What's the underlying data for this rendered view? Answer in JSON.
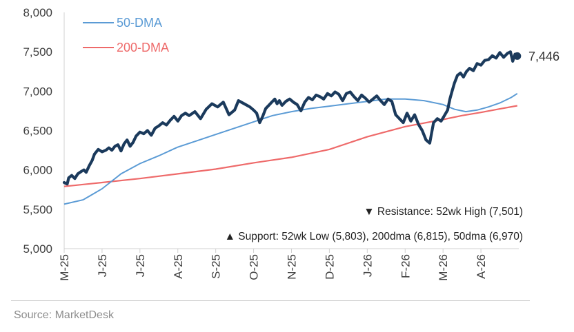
{
  "chart_data": {
    "type": "line",
    "y_ticks": [
      "8,000",
      "7,500",
      "7,000",
      "6,500",
      "6,000",
      "5,500",
      "5,000"
    ],
    "ylim": [
      5000,
      8000
    ],
    "x_ticks": [
      "M-25",
      "J-25",
      "J-25",
      "A-25",
      "S-25",
      "O-25",
      "N-25",
      "D-25",
      "J-26",
      "F-26",
      "M-26",
      "A-26"
    ],
    "xlim": [
      0,
      12
    ],
    "legend": {
      "ma50_label": "50-DMA",
      "ma200_label": "200-DMA"
    },
    "last_value_label": "7,446",
    "annotations": {
      "resistance": "▼ Resistance:  52wk High (7,501)",
      "support": "▲ Support:  52wk Low (5,803), 200dma (6,815), 50dma (6,970)"
    },
    "colors": {
      "price": "#1b3a5c",
      "ma50": "#5b9bd5",
      "ma200": "#ee6a6a",
      "axis": "#d0d0d0"
    },
    "series": [
      {
        "key": "price",
        "x": [
          0.0,
          0.08,
          0.12,
          0.2,
          0.28,
          0.36,
          0.45,
          0.52,
          0.58,
          0.66,
          0.74,
          0.8,
          0.9,
          1.0,
          1.1,
          1.18,
          1.26,
          1.34,
          1.42,
          1.5,
          1.58,
          1.66,
          1.74,
          1.82,
          1.9,
          2.0,
          2.1,
          2.2,
          2.3,
          2.4,
          2.5,
          2.6,
          2.7,
          2.8,
          2.9,
          3.0,
          3.1,
          3.2,
          3.3,
          3.45,
          3.6,
          3.75,
          3.9,
          4.05,
          4.2,
          4.35,
          4.5,
          4.55,
          4.6,
          4.75,
          4.9,
          5.0,
          5.08,
          5.16,
          5.24,
          5.32,
          5.4,
          5.48,
          5.56,
          5.62,
          5.68,
          5.75,
          5.85,
          5.95,
          6.05,
          6.15,
          6.25,
          6.35,
          6.45,
          6.55,
          6.65,
          6.75,
          6.85,
          6.95,
          7.05,
          7.15,
          7.25,
          7.35,
          7.45,
          7.55,
          7.65,
          7.75,
          7.85,
          7.95,
          8.05,
          8.15,
          8.25,
          8.35,
          8.45,
          8.55,
          8.65,
          8.75,
          8.85,
          8.95,
          9.05,
          9.15,
          9.25,
          9.35,
          9.45,
          9.55,
          9.65,
          9.75,
          9.85,
          9.95,
          10.05,
          10.12,
          10.18,
          10.24,
          10.3,
          10.38,
          10.46,
          10.54,
          10.62,
          10.7,
          10.8,
          10.9,
          11.0,
          11.1,
          11.2,
          11.3,
          11.4,
          11.5,
          11.6,
          11.7,
          11.78,
          11.84,
          11.9,
          11.96
        ],
        "values": [
          5840,
          5820,
          5900,
          5930,
          5890,
          5950,
          5980,
          6000,
          5970,
          6050,
          6120,
          6200,
          6260,
          6230,
          6250,
          6280,
          6250,
          6300,
          6320,
          6240,
          6330,
          6380,
          6300,
          6350,
          6430,
          6480,
          6460,
          6500,
          6440,
          6530,
          6560,
          6600,
          6570,
          6630,
          6680,
          6620,
          6690,
          6720,
          6690,
          6740,
          6650,
          6770,
          6840,
          6800,
          6860,
          6700,
          6760,
          6820,
          6880,
          6840,
          6800,
          6760,
          6720,
          6600,
          6680,
          6780,
          6820,
          6860,
          6900,
          6840,
          6880,
          6820,
          6870,
          6900,
          6860,
          6830,
          6750,
          6860,
          6920,
          6890,
          6950,
          6930,
          6900,
          6970,
          6940,
          6990,
          6960,
          6880,
          6970,
          6990,
          6930,
          6880,
          6950,
          6910,
          6860,
          6900,
          6940,
          6880,
          6830,
          6900,
          6870,
          6700,
          6650,
          6600,
          6720,
          6620,
          6700,
          6580,
          6500,
          6380,
          6340,
          6600,
          6650,
          6620,
          6700,
          6760,
          6900,
          7000,
          7100,
          7200,
          7230,
          7180,
          7250,
          7290,
          7260,
          7350,
          7330,
          7390,
          7400,
          7450,
          7420,
          7490,
          7430,
          7480,
          7500,
          7380,
          7470,
          7446
        ]
      },
      {
        "key": "ma50",
        "x": [
          0.0,
          0.5,
          1.0,
          1.5,
          2.0,
          2.5,
          3.0,
          3.5,
          4.0,
          4.5,
          5.0,
          5.5,
          6.0,
          6.5,
          7.0,
          7.5,
          8.0,
          8.5,
          9.0,
          9.5,
          10.0,
          10.3,
          10.6,
          10.9,
          11.2,
          11.5,
          11.8,
          11.96
        ],
        "values": [
          5565,
          5620,
          5760,
          5950,
          6080,
          6180,
          6290,
          6370,
          6450,
          6530,
          6610,
          6690,
          6740,
          6780,
          6810,
          6840,
          6870,
          6900,
          6900,
          6880,
          6830,
          6770,
          6740,
          6760,
          6800,
          6850,
          6920,
          6970
        ]
      },
      {
        "key": "ma200",
        "x": [
          0.0,
          1.0,
          2.0,
          3.0,
          4.0,
          5.0,
          6.0,
          7.0,
          8.0,
          9.0,
          10.0,
          10.5,
          11.0,
          11.5,
          11.96
        ],
        "values": [
          5790,
          5840,
          5890,
          5950,
          6010,
          6090,
          6160,
          6260,
          6420,
          6550,
          6640,
          6690,
          6730,
          6775,
          6815
        ]
      }
    ]
  }
}
